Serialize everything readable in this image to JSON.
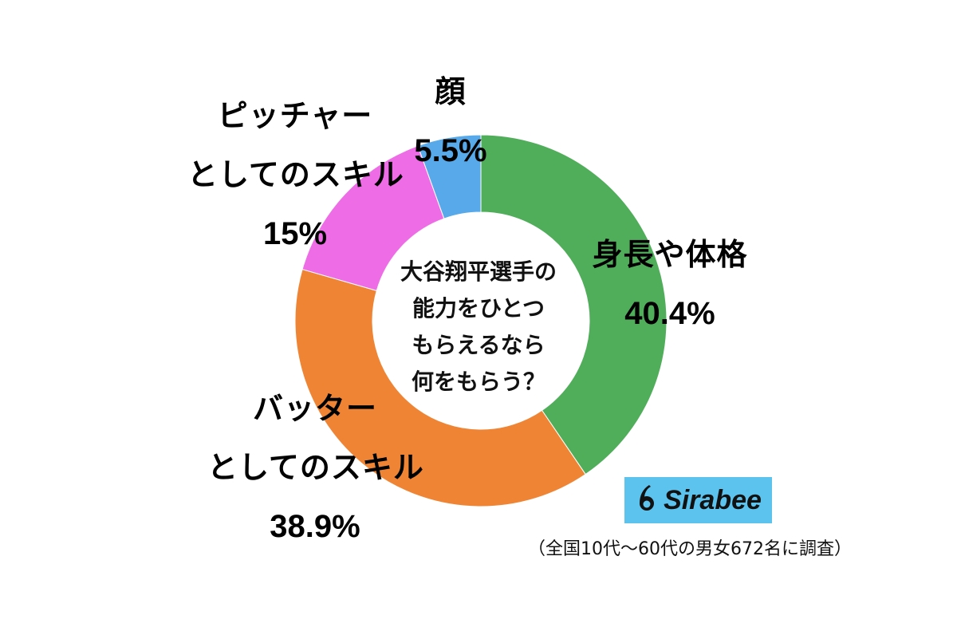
{
  "chart_data": {
    "type": "pie",
    "title": "大谷翔平選手の能力をひとつもらえるなら何をもらう？",
    "title_lines": [
      "大谷翔平選手の",
      "能力をひとつ",
      "もらえるなら",
      "何をもらう？"
    ],
    "slices": [
      {
        "name": "身長や体格",
        "name_lines": [
          "身長や体格"
        ],
        "value": 40.4,
        "value_label": "40.4%",
        "color": "#50ae5b"
      },
      {
        "name": "バッターとしてのスキル",
        "name_lines": [
          "バッター",
          "としてのスキル"
        ],
        "value": 38.9,
        "value_label": "38.9%",
        "color": "#ef8534"
      },
      {
        "name": "ピッチャーとしてのスキル",
        "name_lines": [
          "ピッチャー",
          "としてのスキル"
        ],
        "value": 15,
        "value_label": "15%",
        "color": "#ee6ce6"
      },
      {
        "name": "顔",
        "name_lines": [
          "顔"
        ],
        "value": 5.5,
        "value_label": "5.5%",
        "color": "#57a9ea"
      }
    ],
    "legend": "none",
    "start_angle_deg": 0,
    "direction": "clockwise"
  },
  "brand": {
    "name": "Sirabee",
    "color": "#5cc3ef"
  },
  "footnote": "（全国10代～60代の男女672名に調査）"
}
